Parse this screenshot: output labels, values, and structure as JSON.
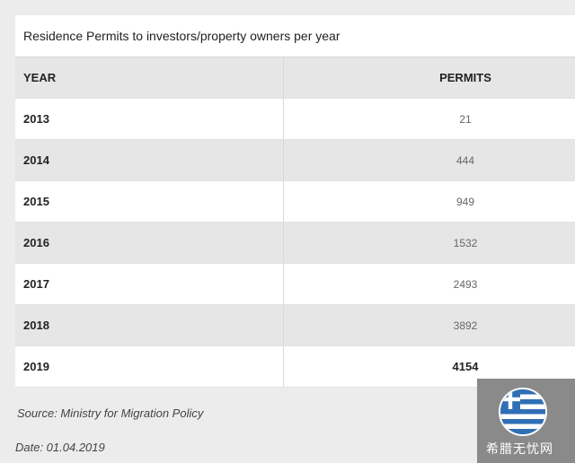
{
  "table": {
    "caption": "Residence Permits to investors/property owners per year",
    "headers": {
      "year": "YEAR",
      "permits": "PERMITS"
    },
    "rows": [
      {
        "year": "2013",
        "permits": "21"
      },
      {
        "year": "2014",
        "permits": "444"
      },
      {
        "year": "2015",
        "permits": "949"
      },
      {
        "year": "2016",
        "permits": "1532"
      },
      {
        "year": "2017",
        "permits": "2493"
      },
      {
        "year": "2018",
        "permits": "3892"
      },
      {
        "year": "2019",
        "permits": "4154"
      }
    ]
  },
  "source": "Source: Ministry for Migration Policy",
  "date": "Date: 01.04.2019",
  "watermark": {
    "icon": "greek-flag-icon",
    "text": "希腊无忧网"
  },
  "colors": {
    "header_bg": "#e6e6e6",
    "row_alt_bg": "#e6e6e6",
    "page_bg": "#ececec",
    "flag_blue": "#2f6fb5"
  }
}
